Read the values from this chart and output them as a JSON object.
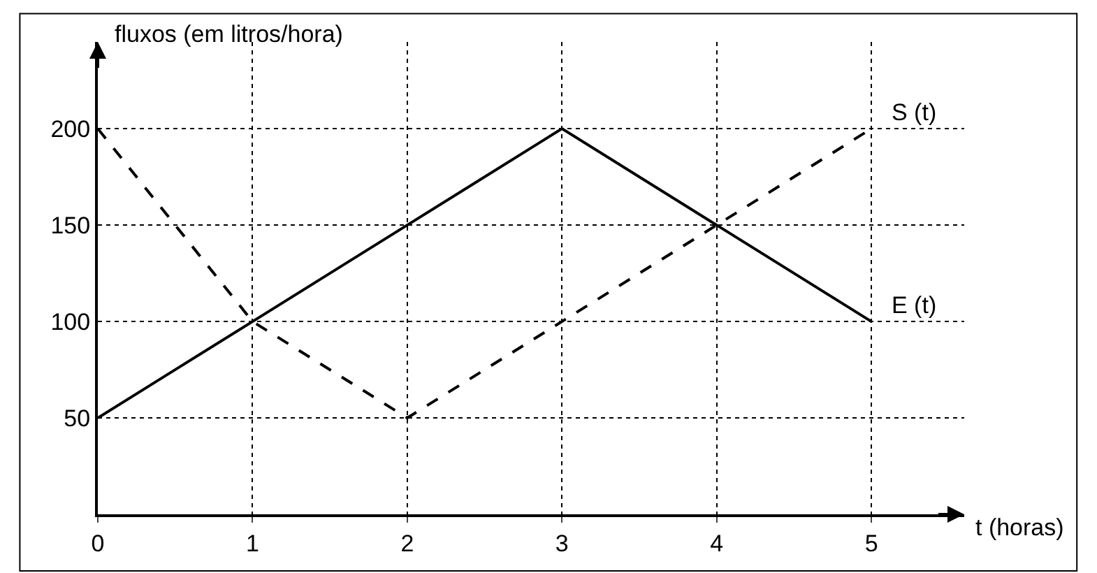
{
  "chart_data": {
    "type": "line",
    "xlabel": "t (horas)",
    "ylabel": "fluxos (em litros/hora)",
    "x": [
      0,
      1,
      2,
      3,
      4,
      5
    ],
    "series": [
      {
        "name": "E (t)",
        "color": "#000000",
        "line_style": "solid",
        "values": [
          50,
          100,
          150,
          200,
          150,
          100
        ]
      },
      {
        "name": "S (t)",
        "color": "#000000",
        "line_style": "dashed",
        "values": [
          200,
          100,
          50,
          100,
          150,
          200
        ]
      }
    ],
    "xlim": [
      0,
      5.6
    ],
    "ylim": [
      0,
      245
    ],
    "xticks": [
      0,
      1,
      2,
      3,
      4,
      5
    ],
    "yticks": [
      50,
      100,
      150,
      200
    ],
    "grid": true,
    "legend": false,
    "marker": "none"
  }
}
